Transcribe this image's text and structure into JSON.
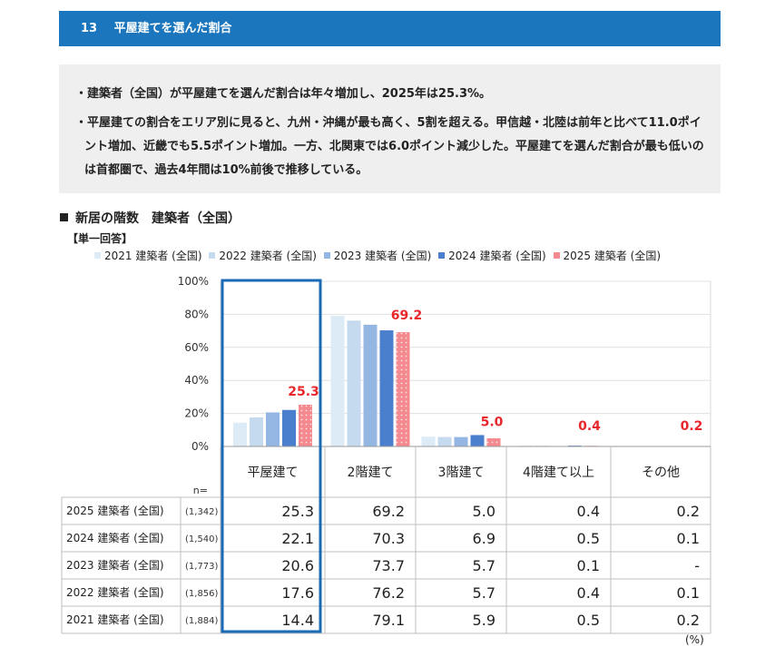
{
  "header": {
    "number": "13",
    "title": "平屋建てを選んだ割合"
  },
  "summary": {
    "bullets": [
      "・建築者（全国）が平屋建てを選んだ割合は年々増加し、2025年は25.3%。",
      "・平屋建ての割合をエリア別に見ると、九州・沖縄が最も高く、5割を超える。甲信越・北陸は前年と比べて11.0ポイント増加、近畿でも5.5ポイント増加。一方、北関東では6.0ポイント減少した。平屋建てを選んだ割合が最も低いのは首都圏で、過去4年間は10%前後で推移している。"
    ]
  },
  "section": {
    "title": "新居の階数　建築者（全国）",
    "unit_note": "【単一回答】"
  },
  "legend": [
    {
      "label": "2021 建築者 (全国)",
      "color": "#dcebf5"
    },
    {
      "label": "2022 建築者 (全国)",
      "color": "#c5d9ef"
    },
    {
      "label": "2023 建築者 (全国)",
      "color": "#94b6e3"
    },
    {
      "label": "2024 建築者 (全国)",
      "color": "#4a7fcd"
    },
    {
      "label": "2025 建築者 (全国)",
      "color": "#f48a8f"
    }
  ],
  "chart_data": {
    "type": "bar",
    "categories": [
      "平屋建て",
      "2階建て",
      "3階建て",
      "4階建て以上",
      "その他"
    ],
    "series": [
      {
        "name": "2021 建築者 (全国)",
        "values": [
          14.4,
          79.1,
          5.9,
          0.5,
          0.2
        ]
      },
      {
        "name": "2022 建築者 (全国)",
        "values": [
          17.6,
          76.2,
          5.7,
          0.4,
          0.1
        ]
      },
      {
        "name": "2023 建築者 (全国)",
        "values": [
          20.6,
          73.7,
          5.7,
          0.1,
          0
        ]
      },
      {
        "name": "2024 建築者 (全国)",
        "values": [
          22.1,
          70.3,
          6.9,
          0.5,
          0.1
        ]
      },
      {
        "name": "2025 建築者 (全国)",
        "values": [
          25.3,
          69.2,
          5.0,
          0.4,
          0.2
        ]
      }
    ],
    "yticks": [
      "100%",
      "80%",
      "60%",
      "40%",
      "20%",
      "0%"
    ],
    "ylim": [
      0,
      100
    ],
    "highlight_labels": [
      "25.3",
      "69.2",
      "5.0",
      "0.4",
      "0.2"
    ],
    "highlight_category": "平屋建て",
    "unit": "(%)"
  },
  "table": {
    "n_label": "n=",
    "rows": [
      {
        "label": "2025 建築者 (全国)",
        "n": "(1,342)",
        "cells": [
          "25.3",
          "69.2",
          "5.0",
          "0.4",
          "0.2"
        ]
      },
      {
        "label": "2024 建築者 (全国)",
        "n": "(1,540)",
        "cells": [
          "22.1",
          "70.3",
          "6.9",
          "0.5",
          "0.1"
        ]
      },
      {
        "label": "2023 建築者 (全国)",
        "n": "(1,773)",
        "cells": [
          "20.6",
          "73.7",
          "5.7",
          "0.1",
          "-"
        ]
      },
      {
        "label": "2022 建築者 (全国)",
        "n": "(1,856)",
        "cells": [
          "17.6",
          "76.2",
          "5.7",
          "0.4",
          "0.1"
        ]
      },
      {
        "label": "2021 建築者 (全国)",
        "n": "(1,884)",
        "cells": [
          "14.4",
          "79.1",
          "5.9",
          "0.5",
          "0.2"
        ]
      }
    ]
  },
  "footer": {
    "unit": "(%)"
  }
}
